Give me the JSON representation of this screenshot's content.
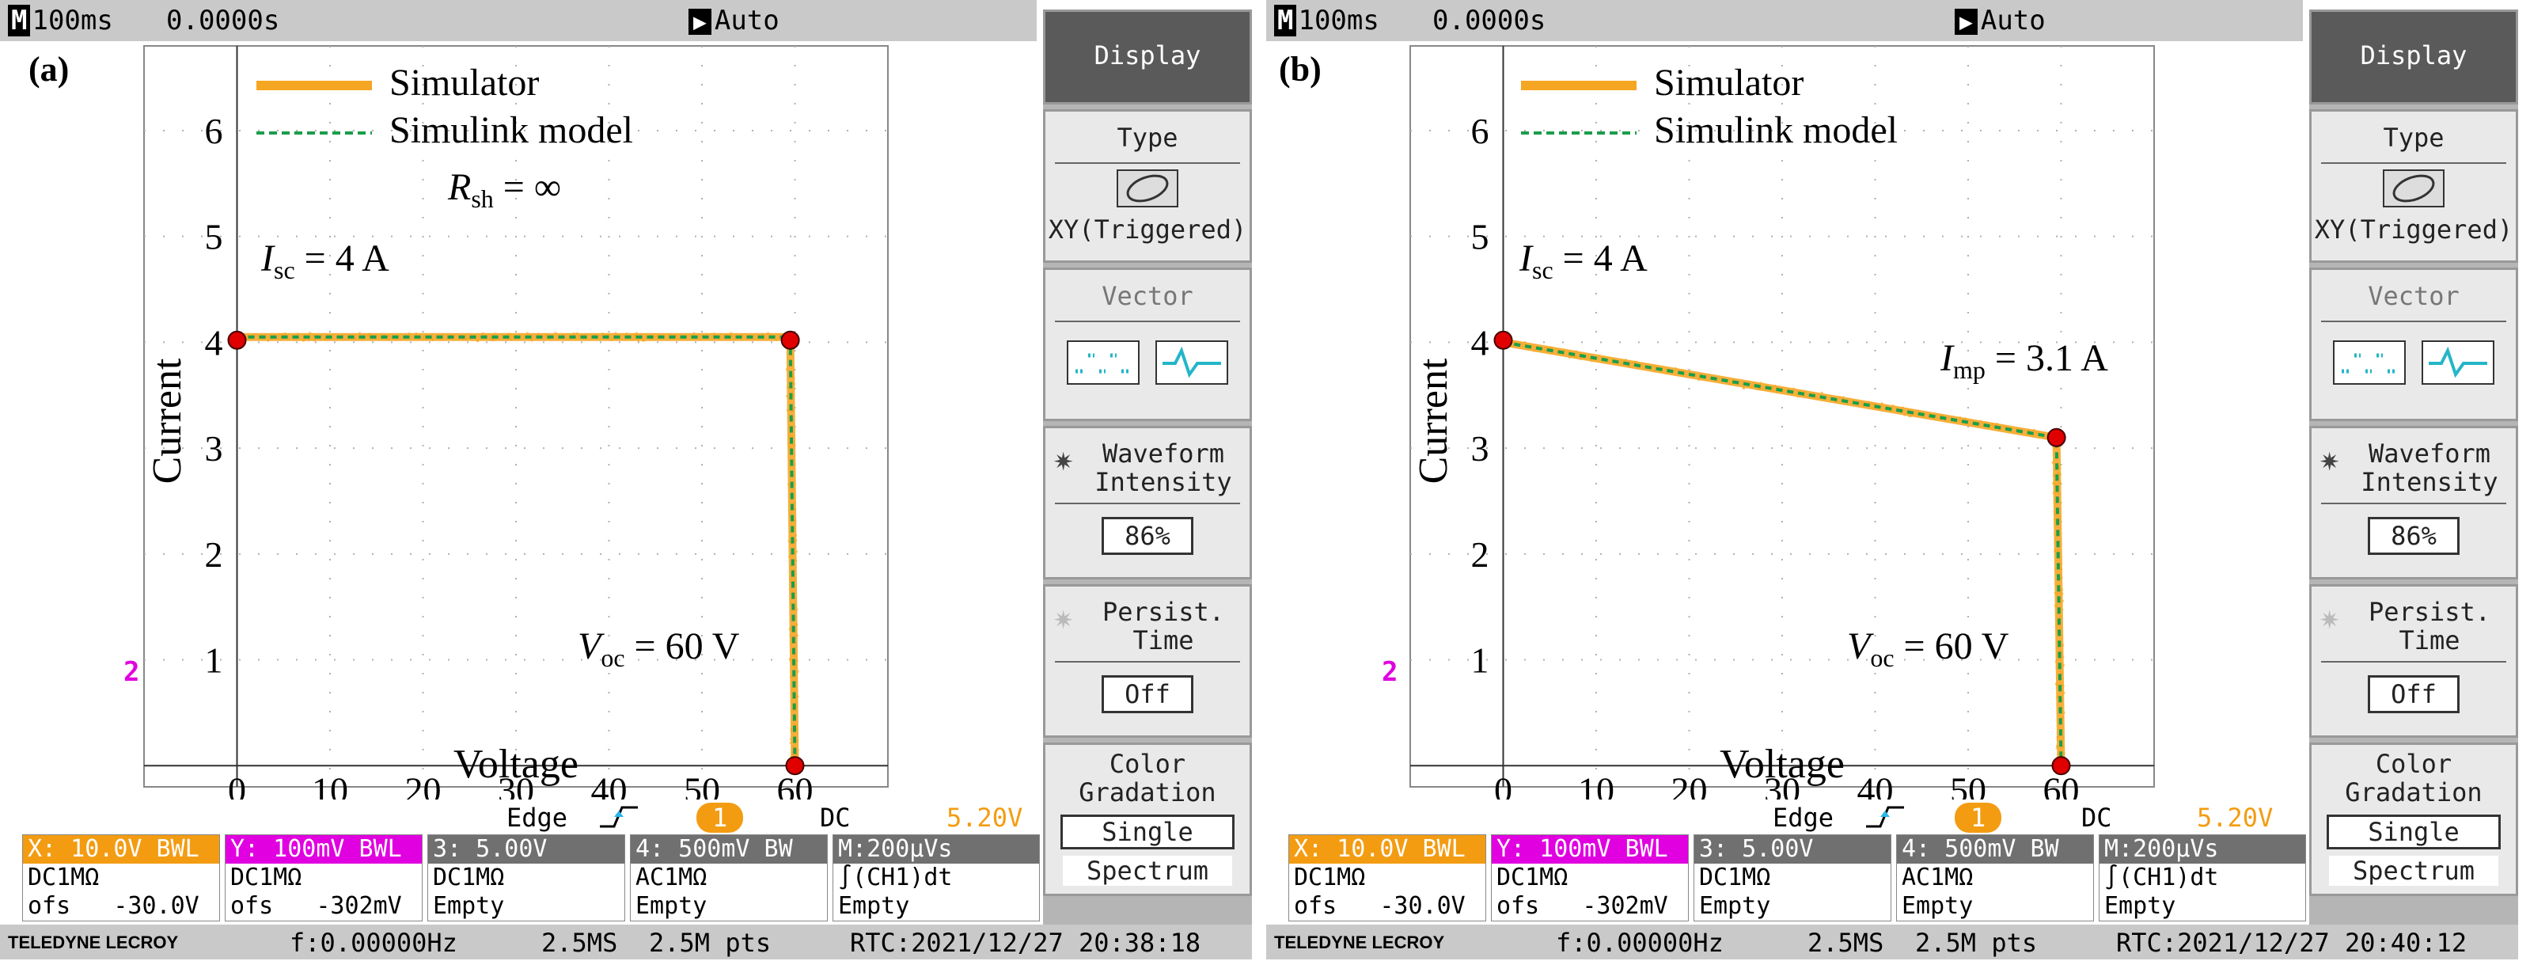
{
  "common": {
    "timebase": "100ms",
    "time_offset": "0.0000s",
    "trigger_mode": "Auto",
    "legend": {
      "simulator": "Simulator",
      "model": "Simulink model"
    },
    "sidebar": {
      "display": "Display",
      "type_label": "Type",
      "type_value": "XY(Triggered)",
      "vector_label": "Vector",
      "waveform_label_1": "Waveform",
      "waveform_label_2": "Intensity",
      "waveform_value": "86%",
      "persist_label_1": "Persist.",
      "persist_label_2": "Time",
      "persist_value": "Off",
      "color_label_1": "Color",
      "color_label_2": "Gradation",
      "color_single": "Single",
      "color_spectrum": "Spectrum"
    },
    "trigger": {
      "edge": "Edge",
      "channel": "1",
      "coupling": "DC",
      "level": "5.20V"
    },
    "channels": [
      {
        "header": "X: 10.0V BWL",
        "line1": "DC1MΩ",
        "line2": "ofs   -30.0V",
        "color": "#f39c12"
      },
      {
        "header": "Y: 100mV BWL",
        "line1": "DC1MΩ",
        "line2": "ofs   -302mV",
        "color": "#e000e0"
      },
      {
        "header": "3: 5.00V",
        "line1": "DC1MΩ",
        "line2": "Empty",
        "color": "#707070"
      },
      {
        "header": "4: 500mV  BW",
        "line1": "AC1MΩ",
        "line2": "Empty",
        "color": "#707070"
      },
      {
        "header": "M:200µVs",
        "line1": "∫(CH1)dt",
        "line2": "Empty",
        "color": "#707070"
      }
    ],
    "brand": "TELEDYNE LECROY",
    "freq": "f:0.00000Hz",
    "sample_rate": "2.5MS",
    "points": "2.5M pts",
    "ground_marker": "2"
  },
  "chart_data": [
    {
      "type": "line",
      "panel_label": "(a)",
      "xlabel": "Voltage",
      "ylabel": "Current",
      "xlim": [
        -10,
        70
      ],
      "ylim": [
        -0.2,
        6.8
      ],
      "xticks": [
        0,
        10,
        20,
        30,
        40,
        50,
        60
      ],
      "yticks": [
        1,
        2,
        3,
        4,
        5,
        6
      ],
      "grid": true,
      "legend_position": "top-left",
      "series": [
        {
          "name": "Simulator",
          "color": "#f5a623",
          "x": [
            0,
            59.5,
            60
          ],
          "y": [
            4.05,
            4.05,
            0
          ]
        },
        {
          "name": "Simulink model",
          "color": "#1a9e4a",
          "x": [
            0,
            59.5,
            60
          ],
          "y": [
            4.05,
            4.05,
            0
          ]
        }
      ],
      "markers": {
        "x": [
          0,
          59.5,
          60
        ],
        "y": [
          4.02,
          4.02,
          0
        ]
      },
      "annotations": [
        {
          "label": "Isc = 4 A",
          "main": "I",
          "sub": "sc",
          "rest": " = 4 A"
        },
        {
          "label": "Voc = 60 V",
          "main": "V",
          "sub": "oc",
          "rest": " = 60 V"
        },
        {
          "label": "Rsh = ∞",
          "main": "R",
          "sub": "sh",
          "rest": " = ∞"
        }
      ],
      "rtc": "RTC:2021/12/27 20:38:18"
    },
    {
      "type": "line",
      "panel_label": "(b)",
      "xlabel": "Voltage",
      "ylabel": "Current",
      "xlim": [
        -10,
        70
      ],
      "ylim": [
        -0.2,
        6.8
      ],
      "xticks": [
        0,
        10,
        20,
        30,
        40,
        50,
        60
      ],
      "yticks": [
        1,
        2,
        3,
        4,
        5,
        6
      ],
      "grid": true,
      "legend_position": "top-left",
      "series": [
        {
          "name": "Simulator",
          "color": "#f5a623",
          "x": [
            0,
            59.5,
            60
          ],
          "y": [
            4.0,
            3.1,
            0
          ]
        },
        {
          "name": "Simulink model",
          "color": "#1a9e4a",
          "x": [
            0,
            59.5,
            60
          ],
          "y": [
            4.0,
            3.1,
            0
          ]
        }
      ],
      "markers": {
        "x": [
          0,
          59.5,
          60
        ],
        "y": [
          4.02,
          3.1,
          0
        ]
      },
      "annotations": [
        {
          "label": "Isc = 4 A",
          "main": "I",
          "sub": "sc",
          "rest": " = 4 A"
        },
        {
          "label": "Voc = 60 V",
          "main": "V",
          "sub": "oc",
          "rest": " = 60 V"
        },
        {
          "label": "Imp = 3.1 A",
          "main": "I",
          "sub": "mp",
          "rest": " = 3.1 A"
        }
      ],
      "rtc": "RTC:2021/12/27 20:40:12"
    }
  ]
}
